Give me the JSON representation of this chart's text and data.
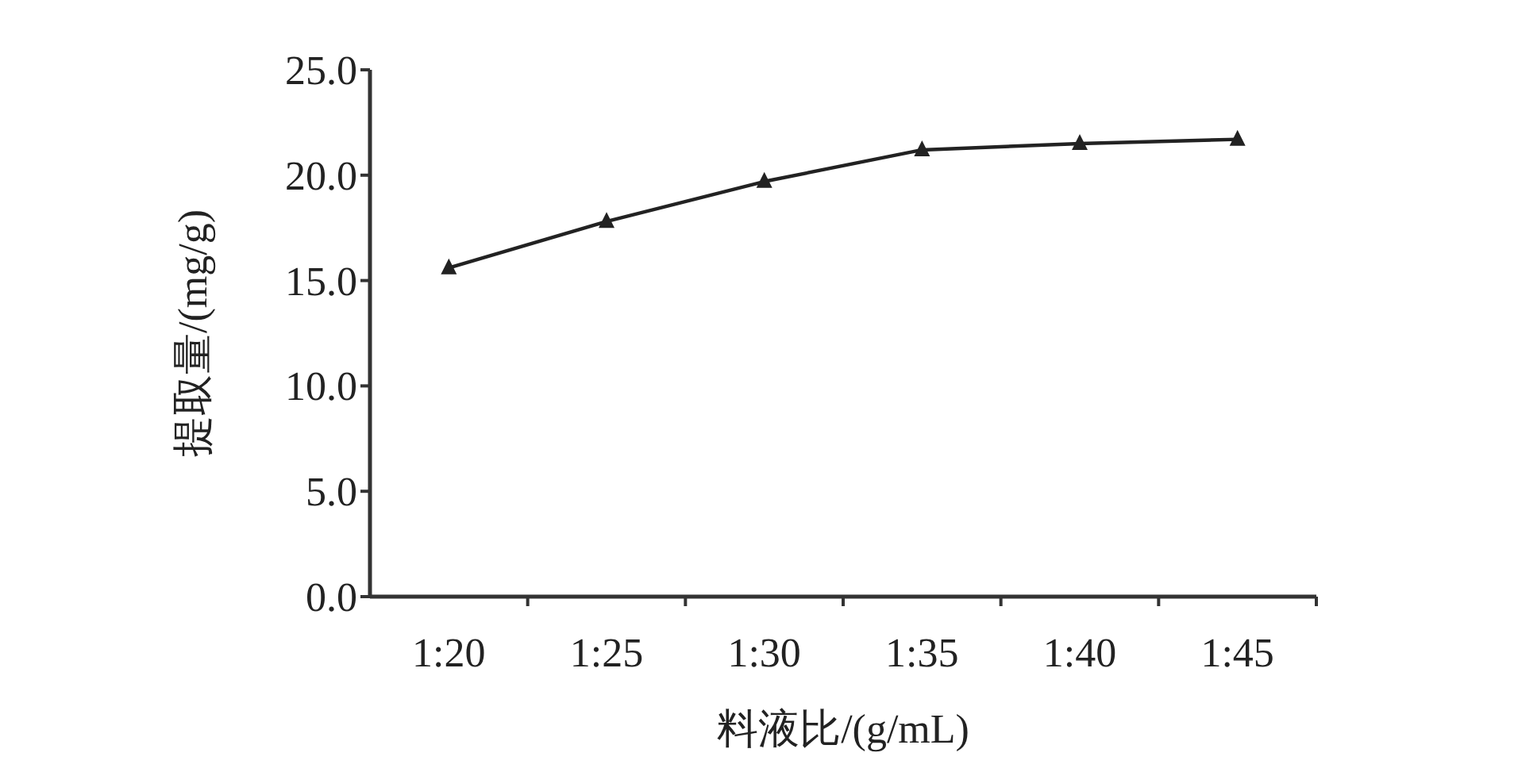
{
  "chart_data": {
    "type": "line",
    "xlabel": "料液比/(g/mL)",
    "ylabel": "提取量/(mg/g)",
    "categories": [
      "1:20",
      "1:25",
      "1:30",
      "1:35",
      "1:40",
      "1:45"
    ],
    "series": [
      {
        "color": "#222222",
        "values": [
          15.6,
          17.8,
          19.7,
          21.2,
          21.5,
          21.7
        ]
      }
    ],
    "ylim": [
      0,
      25
    ],
    "yticks": [
      {
        "value": 0,
        "label": "0.0"
      },
      {
        "value": 5,
        "label": "5.0"
      },
      {
        "value": 10,
        "label": "10.0"
      },
      {
        "value": 15,
        "label": "15.0"
      },
      {
        "value": 20,
        "label": "20.0"
      },
      {
        "value": 25,
        "label": "25.0"
      }
    ],
    "marker": "triangle",
    "line_style": "solid"
  }
}
